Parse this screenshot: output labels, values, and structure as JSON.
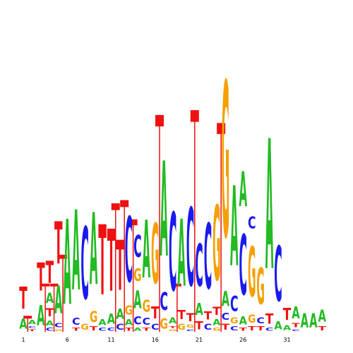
{
  "colors": {
    "A": "#22bb22",
    "C": "#1a1aee",
    "G": "#f5a000",
    "T": "#ee1111"
  },
  "motif": {
    "max_bits": 2,
    "positions": [
      {
        "index": 1,
        "letters": [
          [
            "A",
            0.1
          ],
          [
            "T",
            0.22
          ]
        ]
      },
      {
        "index": 2,
        "letters": [
          [
            "T",
            0.02
          ],
          [
            "C",
            0.02
          ],
          [
            "A",
            0.04
          ]
        ]
      },
      {
        "index": 3,
        "letters": [
          [
            "A",
            0.2
          ],
          [
            "T",
            0.28
          ]
        ]
      },
      {
        "index": 4,
        "letters": [
          [
            "C",
            0.03
          ],
          [
            "A",
            0.05
          ],
          [
            "T",
            0.08
          ],
          [
            "A",
            0.1
          ],
          [
            "T",
            0.22
          ]
        ]
      },
      {
        "index": 5,
        "letters": [
          [
            "G",
            0.02
          ],
          [
            "C",
            0.04
          ],
          [
            "A",
            0.28
          ],
          [
            "T",
            0.42
          ]
        ]
      },
      {
        "index": 6,
        "letters": [
          [
            "A",
            0.85
          ]
        ]
      },
      {
        "index": 7,
        "letters": [
          [
            "T",
            0.03
          ],
          [
            "C",
            0.07
          ],
          [
            "A",
            0.8
          ]
        ]
      },
      {
        "index": 8,
        "letters": [
          [
            "G",
            0.06
          ],
          [
            "C",
            0.72
          ]
        ]
      },
      {
        "index": 9,
        "letters": [
          [
            "T",
            0.04
          ],
          [
            "G",
            0.11
          ],
          [
            "A",
            0.72
          ]
        ]
      },
      {
        "index": 10,
        "letters": [
          [
            "C",
            0.03
          ],
          [
            "A",
            0.06
          ],
          [
            "T",
            0.7
          ]
        ]
      },
      {
        "index": 11,
        "letters": [
          [
            "C",
            0.03
          ],
          [
            "A",
            0.1
          ],
          [
            "T",
            0.62
          ]
        ]
      },
      {
        "index": 12,
        "letters": [
          [
            "C",
            0.06
          ],
          [
            "A",
            0.1
          ],
          [
            "T",
            0.5
          ]
        ]
      },
      {
        "index": 13,
        "letters": [
          [
            "T",
            0.03
          ],
          [
            "A",
            0.06
          ],
          [
            "G",
            0.09
          ],
          [
            "C",
            0.65
          ]
        ]
      },
      {
        "index": 14,
        "letters": [
          [
            "A",
            0.03
          ],
          [
            "C",
            0.08
          ],
          [
            "A",
            0.18
          ],
          [
            "G",
            0.13
          ],
          [
            "C",
            0.22
          ]
        ]
      },
      {
        "index": 15,
        "letters": [
          [
            "T",
            0.03
          ],
          [
            "C",
            0.07
          ],
          [
            "G",
            0.12
          ],
          [
            "A",
            0.58
          ]
        ]
      },
      {
        "index": 16,
        "letters": [
          [
            "C",
            0.06
          ],
          [
            "T",
            0.12
          ],
          [
            "G",
            0.6
          ]
        ]
      },
      {
        "index": 17,
        "letters": [
          [
            "G",
            0.1
          ],
          [
            "C",
            0.18
          ],
          [
            "A",
            0.95
          ]
        ]
      },
      {
        "index": 18,
        "letters": [
          [
            "G",
            0.02
          ],
          [
            "T",
            0.02
          ],
          [
            "A",
            0.06
          ],
          [
            "C",
            0.78
          ]
        ]
      },
      {
        "index": 19,
        "letters": [
          [
            "G",
            0.06
          ],
          [
            "T",
            0.09
          ],
          [
            "A",
            0.67
          ]
        ]
      },
      {
        "index": 20,
        "letters": [
          [
            "C",
            0.02
          ],
          [
            "G",
            0.03
          ],
          [
            "T",
            0.08
          ],
          [
            "C",
            0.78
          ]
        ]
      },
      {
        "index": 21,
        "letters": [
          [
            "T",
            0.08
          ],
          [
            "A",
            0.12
          ],
          [
            "C",
            0.42
          ]
        ]
      },
      {
        "index": 22,
        "letters": [
          [
            "C",
            0.06
          ],
          [
            "T",
            0.08
          ],
          [
            "C",
            0.65
          ]
        ]
      },
      {
        "index": 23,
        "letters": [
          [
            "G",
            0.03
          ],
          [
            "A",
            0.06
          ],
          [
            "T",
            0.08
          ],
          [
            "G",
            0.75
          ]
        ]
      },
      {
        "index": 24,
        "letters": [
          [
            "T",
            0.06
          ],
          [
            "C",
            0.07
          ],
          [
            "A",
            0.15
          ],
          [
            "G",
            1.55
          ]
        ]
      },
      {
        "index": 25,
        "letters": [
          [
            "C",
            0.04
          ],
          [
            "G",
            0.06
          ],
          [
            "C",
            0.15
          ],
          [
            "A",
            0.8
          ]
        ]
      },
      {
        "index": 26,
        "letters": [
          [
            "T",
            0.03
          ],
          [
            "A",
            0.08
          ],
          [
            "C",
            0.6
          ],
          [
            "A",
            0.35
          ]
        ]
      },
      {
        "index": 27,
        "letters": [
          [
            "T",
            0.04
          ],
          [
            "G",
            0.08
          ],
          [
            "G",
            0.5
          ],
          [
            "C",
            0.12
          ]
        ]
      },
      {
        "index": 28,
        "letters": [
          [
            "T",
            0.04
          ],
          [
            "C",
            0.06
          ],
          [
            "G",
            0.36
          ]
        ]
      },
      {
        "index": 29,
        "letters": [
          [
            "C",
            0.03
          ],
          [
            "T",
            0.1
          ],
          [
            "A",
            1.3
          ]
        ]
      },
      {
        "index": 30,
        "letters": [
          [
            "A",
            0.08
          ],
          [
            "C",
            0.55
          ]
        ]
      },
      {
        "index": 31,
        "letters": [
          [
            "A",
            0.05
          ],
          [
            "T",
            0.12
          ]
        ]
      },
      {
        "index": 32,
        "letters": [
          [
            "C",
            0.02
          ],
          [
            "T",
            0.04
          ],
          [
            "A",
            0.12
          ]
        ]
      },
      {
        "index": 33,
        "letters": [
          [
            "A",
            0.14
          ]
        ]
      },
      {
        "index": 34,
        "letters": [
          [
            "A",
            0.14
          ]
        ]
      },
      {
        "index": 35,
        "letters": [
          [
            "T",
            0.04
          ],
          [
            "A",
            0.12
          ]
        ]
      }
    ],
    "insertions": [
      {
        "position": 1,
        "height": 0.1
      },
      {
        "position": 3,
        "height": 0.3
      },
      {
        "position": 4,
        "height": 0.3
      },
      {
        "position": 5,
        "height": 0.48
      },
      {
        "position": 11,
        "height": 0.8
      },
      {
        "position": 12,
        "height": 0.82
      },
      {
        "position": 13,
        "height": 0.7
      },
      {
        "position": 16,
        "height": 1.35
      },
      {
        "position": 18,
        "height": 0.3
      },
      {
        "position": 20,
        "height": 1.38
      },
      {
        "position": 23,
        "height": 1.3
      }
    ]
  },
  "axis": {
    "tick_labels": [
      "1",
      "6",
      "11",
      "16",
      "21",
      "26",
      "31"
    ]
  }
}
